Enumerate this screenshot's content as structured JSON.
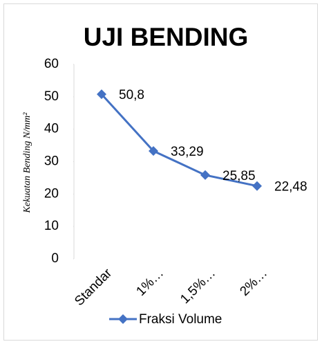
{
  "chart_data": {
    "type": "line",
    "title": "UJI BENDING",
    "y_label": "Kekuatan Bending  N/mm²",
    "categories": [
      "Standar",
      "1%…",
      "1,5%…",
      "2%…"
    ],
    "series": [
      {
        "name": "Fraksi Volume",
        "color": "#4472c4",
        "values": [
          50.8,
          33.29,
          25.85,
          22.48
        ],
        "value_labels": [
          "50,8",
          "33,29",
          "25,85",
          "22,48"
        ]
      }
    ],
    "ylim": [
      0,
      60
    ],
    "yticks": [
      0,
      10,
      20,
      30,
      40,
      50,
      60
    ],
    "grid": false,
    "legend": "bottom"
  }
}
